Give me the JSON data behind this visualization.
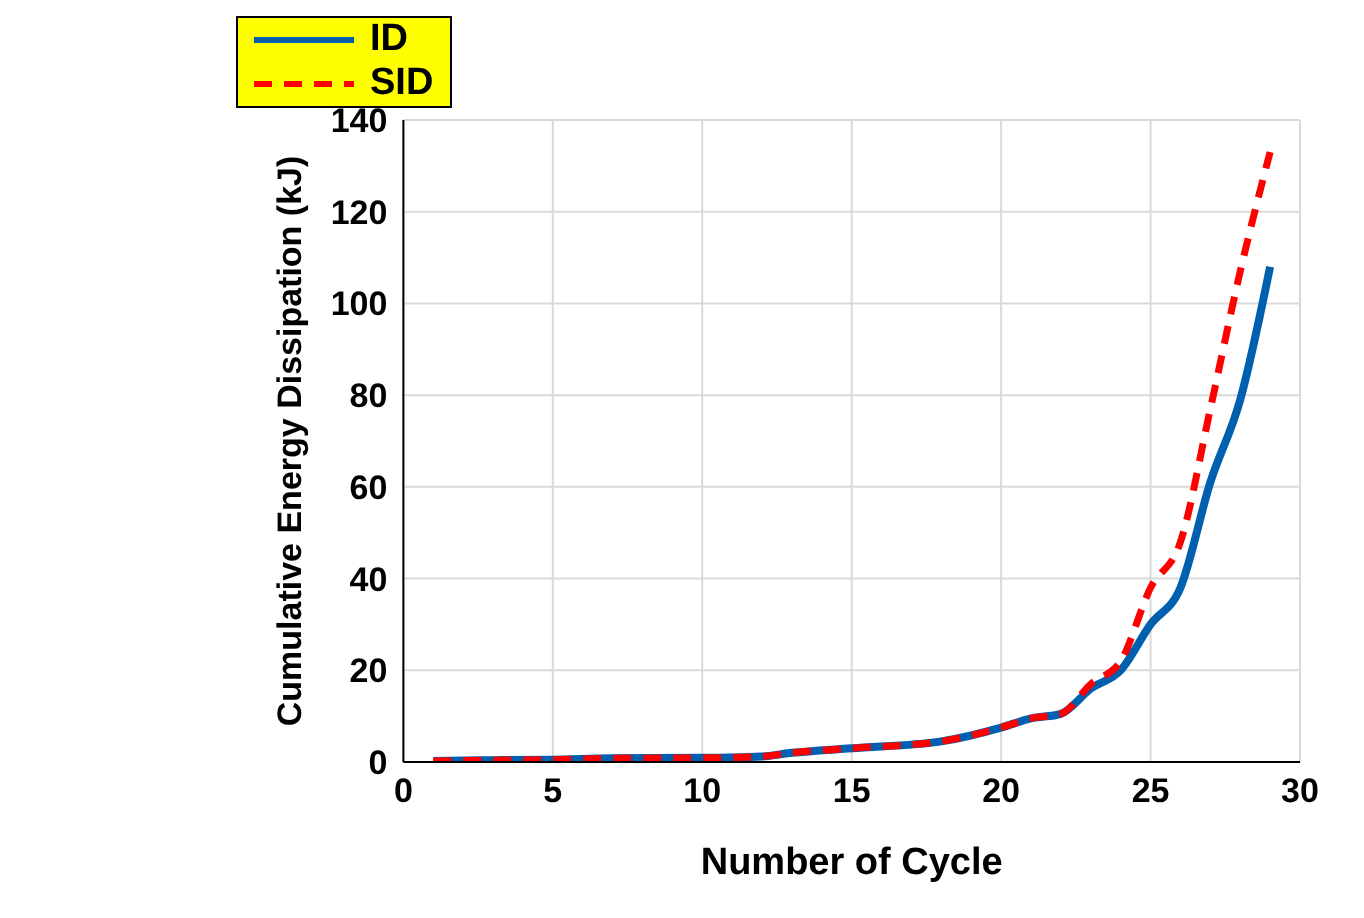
{
  "chart_data": {
    "type": "line",
    "xlabel": "Number of Cycle",
    "ylabel": "Cumulative  Energy Dissipation (kJ)",
    "x": [
      1,
      3,
      5,
      7,
      10,
      12,
      13,
      15,
      18,
      20,
      21,
      22,
      23,
      24,
      25,
      26,
      27,
      28,
      29
    ],
    "series": [
      {
        "name": "ID",
        "color": "#0060b0",
        "line_style": "solid",
        "values": [
          0.2,
          0.4,
          0.5,
          0.8,
          0.9,
          1.2,
          2,
          3,
          4.5,
          7.5,
          9.5,
          10.5,
          16,
          20,
          30,
          38,
          61,
          79,
          108
        ]
      },
      {
        "name": "SID",
        "color": "#ff0000",
        "line_style": "dashed",
        "values": [
          0.2,
          0.4,
          0.5,
          0.8,
          0.9,
          1.2,
          2,
          3,
          4.5,
          7.5,
          9.5,
          10.5,
          17,
          22,
          38,
          48,
          77,
          107,
          133
        ]
      }
    ],
    "xlim": [
      0,
      30
    ],
    "xticks": [
      0,
      5,
      10,
      15,
      20,
      25,
      30
    ],
    "ylim": [
      0,
      140
    ],
    "yticks": [
      0,
      20,
      40,
      60,
      80,
      100,
      120,
      140
    ],
    "grid": true,
    "legend": "top left"
  }
}
